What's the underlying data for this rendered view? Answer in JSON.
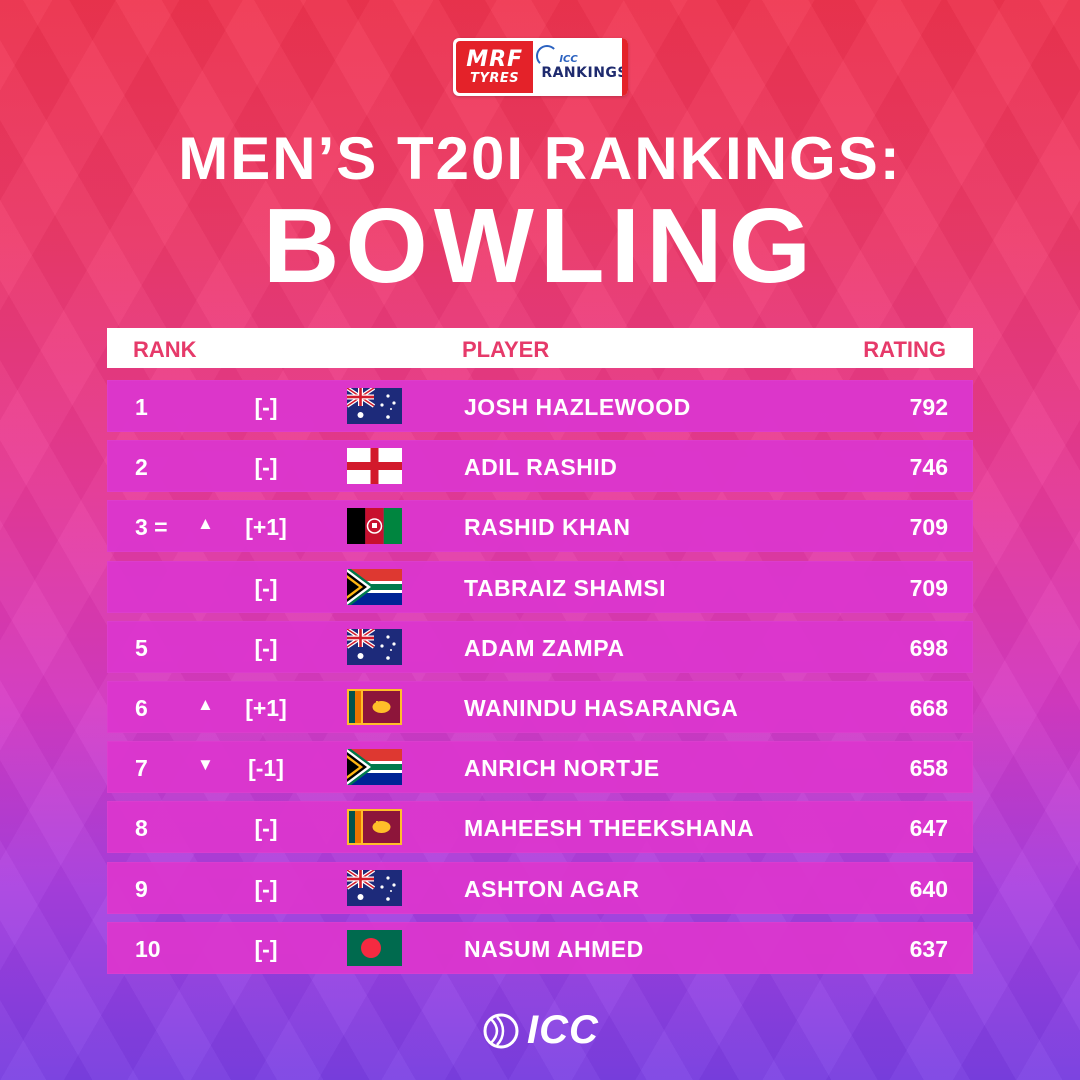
{
  "logo": {
    "sponsor_line1": "MRF",
    "sponsor_line2": "TYRES",
    "icc_line1": "ICC",
    "icc_line2": "RANKINGS"
  },
  "title": {
    "line1": "MEN’S T20I RANKINGS:",
    "line2": "BOWLING"
  },
  "header": {
    "rank": "RANK",
    "player": "PLAYER",
    "rating": "RATING"
  },
  "rows": [
    {
      "rank": "1",
      "arrow": "",
      "change": "[-]",
      "flag": "australia-flag",
      "player": "JOSH HAZLEWOOD",
      "rating": "792"
    },
    {
      "rank": "2",
      "arrow": "",
      "change": "[-]",
      "flag": "england-flag",
      "player": "ADIL RASHID",
      "rating": "746"
    },
    {
      "rank": "3 =",
      "arrow": "▲",
      "change": "[+1]",
      "flag": "afghanistan-flag",
      "player": "RASHID KHAN",
      "rating": "709"
    },
    {
      "rank": "",
      "arrow": "",
      "change": "[-]",
      "flag": "south-africa-flag",
      "player": "TABRAIZ SHAMSI",
      "rating": "709"
    },
    {
      "rank": "5",
      "arrow": "",
      "change": "[-]",
      "flag": "australia-flag",
      "player": "ADAM ZAMPA",
      "rating": "698"
    },
    {
      "rank": "6",
      "arrow": "▲",
      "change": "[+1]",
      "flag": "sri-lanka-flag",
      "player": "WANINDU HASARANGA",
      "rating": "668"
    },
    {
      "rank": "7",
      "arrow": "▼",
      "change": "[-1]",
      "flag": "south-africa-flag",
      "player": "ANRICH NORTJE",
      "rating": "658"
    },
    {
      "rank": "8",
      "arrow": "",
      "change": "[-]",
      "flag": "sri-lanka-flag",
      "player": "MAHEESH THEEKSHANA",
      "rating": "647"
    },
    {
      "rank": "9",
      "arrow": "",
      "change": "[-]",
      "flag": "australia-flag",
      "player": "ASHTON AGAR",
      "rating": "640"
    },
    {
      "rank": "10",
      "arrow": "",
      "change": "[-]",
      "flag": "bangladesh-flag",
      "player": "NASUM AHMED",
      "rating": "637"
    }
  ],
  "footer": {
    "brand": "ICC"
  },
  "colors": {
    "header_text": "#e63a6a",
    "row_bg": "#db36cd",
    "sponsor_red": "#e42229"
  }
}
